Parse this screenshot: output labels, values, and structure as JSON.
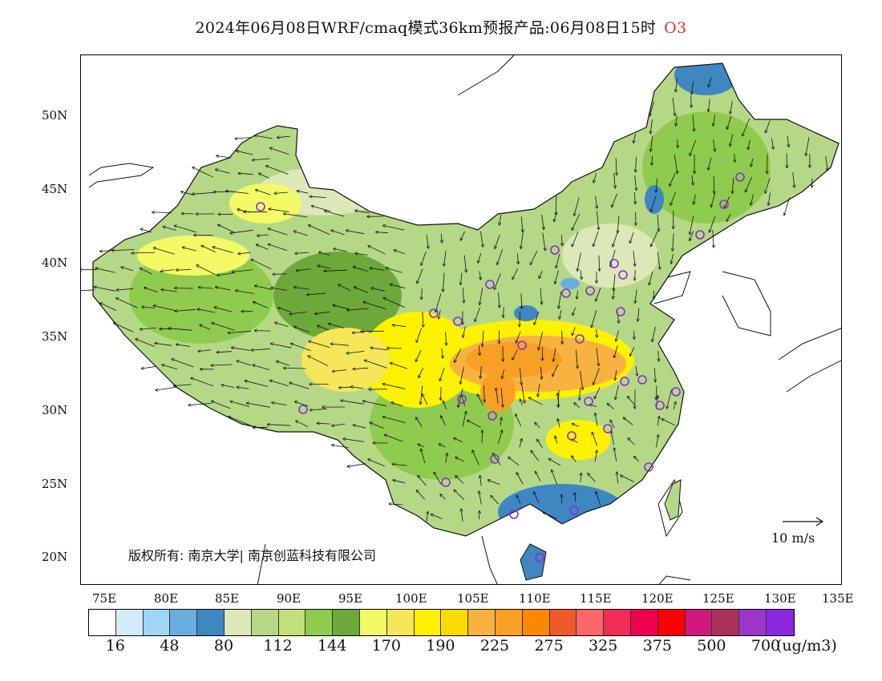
{
  "title": {
    "main": "2024年06月08日WRF/cmaq模式36km预报产品:06月08日15时",
    "species": "O3"
  },
  "axes": {
    "lat_labels": [
      "50N",
      "45N",
      "40N",
      "35N",
      "30N",
      "25N",
      "20N"
    ],
    "lon_labels": [
      "75E",
      "80E",
      "85E",
      "90E",
      "95E",
      "100E",
      "105E",
      "110E",
      "115E",
      "120E",
      "125E",
      "130E",
      "135E"
    ]
  },
  "map": {
    "copyright": "版权所有: 南京大学| 南京创蓝科技有限公司",
    "wind_reference": "10 m/s",
    "colors": {
      "ocean_land_bg": "#ffffff",
      "base_green": "#a5d470",
      "dark_green": "#6fb03c",
      "yellow": "#f7ef5a",
      "orange": "#f6a33a",
      "blue": "#5b9ed6"
    }
  },
  "legend": {
    "colors": [
      "#ffffff",
      "#d3ecfb",
      "#9fd6f6",
      "#6aaedf",
      "#3f87c1",
      "#dde8b8",
      "#b5d887",
      "#c2e07a",
      "#8fcb4e",
      "#6da83a",
      "#f4fa66",
      "#f5e65a",
      "#fff200",
      "#ffdc00",
      "#f7b240",
      "#f8a025",
      "#ff8800",
      "#ef5a2a",
      "#ff6666",
      "#ef2e55",
      "#f0004f",
      "#ff0000",
      "#d0197e",
      "#a8325a",
      "#9a37c8",
      "#8b28e0"
    ],
    "ticks": [
      "16",
      "48",
      "80",
      "112",
      "144",
      "170",
      "190",
      "225",
      "275",
      "325",
      "375",
      "500",
      "700"
    ],
    "unit": "(ug/m3)"
  }
}
